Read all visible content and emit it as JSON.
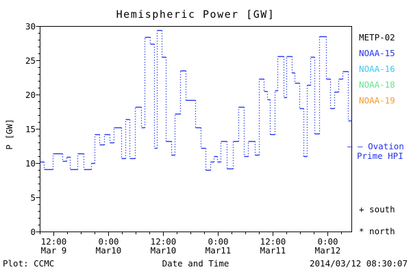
{
  "title": "Hemispheric Power [GW]",
  "colors": {
    "frame": "#000000",
    "hpi_line": "#2233ee",
    "metp02": "#000000",
    "noaa15": "#2233ee",
    "noaa16": "#3cc8f0",
    "noaa18": "#5ce68a",
    "noaa19": "#f59a28"
  },
  "legend": {
    "items": [
      {
        "label": "METP-02",
        "color": "#000000"
      },
      {
        "label": "NOAA-15",
        "color": "#2233ee"
      },
      {
        "label": "NOAA-16",
        "color": "#3cc8f0"
      },
      {
        "label": "NOAA-18",
        "color": "#5ce68a"
      },
      {
        "label": "NOAA-19",
        "color": "#f59a28"
      }
    ]
  },
  "ovation": {
    "marker": "– –",
    "line1": "Ovation",
    "line2": "Prime HPI",
    "color": "#2233ee"
  },
  "markers": {
    "south": "+ south",
    "north": "* north"
  },
  "footer": {
    "credit": "Plot: CCMC",
    "timestamp": "2014/03/12 08:30:07"
  },
  "chart_data": {
    "type": "line",
    "style": "step-dashed",
    "title": "Hemispheric Power [GW]",
    "xlabel": "Date and Time",
    "ylabel": "P [GW]",
    "ylim": [
      0,
      30
    ],
    "y_major_step": 5,
    "y_minor_step": 1,
    "x_span_hours": 68.25,
    "x_minor_step_hours": 3,
    "x_start": "Mar 9 09:00",
    "x_end": "Mar 12 05:15",
    "grid": false,
    "legend_position": "right-outside",
    "y_ticks": [
      "0",
      "5",
      "10",
      "15",
      "20",
      "25",
      "30"
    ],
    "x_ticks": [
      {
        "time": "12:00",
        "date": "Mar 9",
        "hour": 3
      },
      {
        "time": "0:00",
        "date": "Mar10",
        "hour": 15
      },
      {
        "time": "12:00",
        "date": "Mar10",
        "hour": 27
      },
      {
        "time": "0:00",
        "date": "Mar11",
        "hour": 39
      },
      {
        "time": "12:00",
        "date": "Mar11",
        "hour": 51
      },
      {
        "time": "0:00",
        "date": "Mar12",
        "hour": 63
      }
    ],
    "series": [
      {
        "name": "Ovation Prime HPI",
        "color": "#2233ee",
        "units": "GW",
        "hours_from_start_and_value": [
          [
            0,
            10.2
          ],
          [
            0.9,
            9.1
          ],
          [
            2.85,
            11.4
          ],
          [
            4.95,
            10.3
          ],
          [
            5.85,
            10.9
          ],
          [
            6.6,
            9.1
          ],
          [
            8.25,
            11.4
          ],
          [
            9.6,
            9.1
          ],
          [
            11.25,
            10.0
          ],
          [
            12.0,
            14.2
          ],
          [
            13.05,
            12.7
          ],
          [
            14.1,
            14.2
          ],
          [
            15.3,
            13.0
          ],
          [
            16.2,
            15.2
          ],
          [
            17.85,
            10.7
          ],
          [
            18.75,
            16.4
          ],
          [
            19.65,
            10.7
          ],
          [
            20.85,
            18.2
          ],
          [
            22.2,
            15.2
          ],
          [
            22.95,
            28.4
          ],
          [
            24.15,
            27.4
          ],
          [
            25.05,
            12.2
          ],
          [
            25.65,
            29.4
          ],
          [
            26.7,
            25.5
          ],
          [
            27.6,
            13.2
          ],
          [
            28.8,
            11.2
          ],
          [
            29.55,
            17.2
          ],
          [
            30.75,
            23.5
          ],
          [
            31.95,
            19.2
          ],
          [
            34.05,
            15.2
          ],
          [
            35.25,
            12.2
          ],
          [
            36.3,
            9.0
          ],
          [
            37.35,
            10.2
          ],
          [
            38.1,
            11.0
          ],
          [
            38.85,
            10.2
          ],
          [
            39.6,
            13.2
          ],
          [
            40.95,
            9.2
          ],
          [
            42.3,
            13.2
          ],
          [
            43.5,
            18.2
          ],
          [
            44.7,
            11.0
          ],
          [
            45.6,
            13.2
          ],
          [
            47.1,
            11.2
          ],
          [
            48.0,
            22.3
          ],
          [
            49.05,
            20.5
          ],
          [
            49.8,
            19.3
          ],
          [
            50.4,
            14.2
          ],
          [
            51.45,
            20.6
          ],
          [
            52.05,
            25.6
          ],
          [
            53.4,
            19.6
          ],
          [
            54.0,
            25.6
          ],
          [
            55.2,
            23.2
          ],
          [
            55.8,
            21.7
          ],
          [
            56.85,
            18.0
          ],
          [
            57.75,
            11.0
          ],
          [
            58.5,
            21.4
          ],
          [
            59.25,
            25.5
          ],
          [
            60.15,
            14.3
          ],
          [
            61.2,
            28.5
          ],
          [
            62.7,
            22.3
          ],
          [
            63.6,
            18.0
          ],
          [
            64.5,
            20.4
          ],
          [
            65.4,
            22.3
          ],
          [
            66.3,
            23.4
          ],
          [
            67.5,
            16.2
          ]
        ]
      }
    ]
  }
}
